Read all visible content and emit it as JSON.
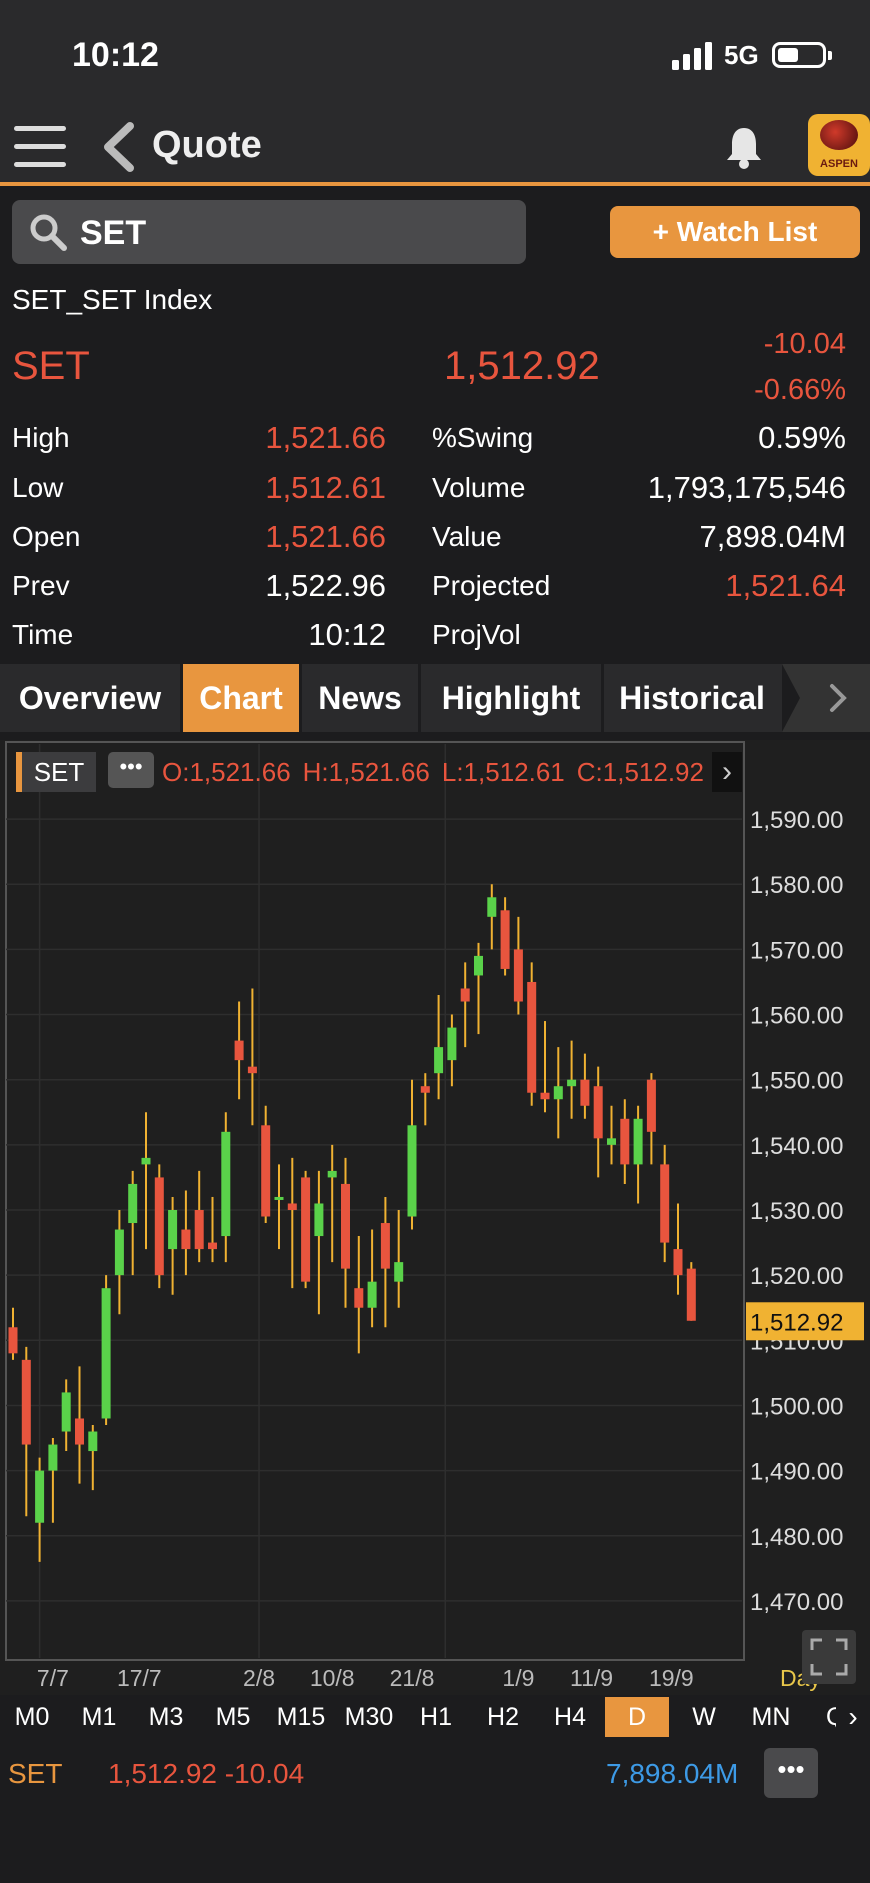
{
  "status": {
    "time": "10:12",
    "network": "5G"
  },
  "header": {
    "title": "Quote"
  },
  "search": {
    "value": "SET",
    "watchlist_label": "+ Watch List"
  },
  "quote": {
    "full_name": "SET_SET Index",
    "symbol": "SET",
    "last": "1,512.92",
    "change": "-10.04",
    "pct_change": "-0.66%",
    "stats_left": [
      {
        "label": "High",
        "value": "1,521.66",
        "color": "#e8553e"
      },
      {
        "label": "Low",
        "value": "1,512.61",
        "color": "#e8553e"
      },
      {
        "label": "Open",
        "value": "1,521.66",
        "color": "#e8553e"
      },
      {
        "label": "Prev",
        "value": "1,522.96",
        "color": "#ffffff"
      },
      {
        "label": "Time",
        "value": "10:12",
        "color": "#ffffff"
      }
    ],
    "stats_right": [
      {
        "label": "%Swing",
        "value": "0.59%",
        "color": "#ffffff"
      },
      {
        "label": "Volume",
        "value": "1,793,175,546",
        "color": "#ffffff"
      },
      {
        "label": "Value",
        "value": "7,898.04M",
        "color": "#ffffff"
      },
      {
        "label": "Projected",
        "value": "1,521.64",
        "color": "#e8553e"
      },
      {
        "label": "ProjVol",
        "value": "",
        "color": "#ffffff"
      }
    ]
  },
  "tabs": [
    {
      "label": "Overview",
      "active": false
    },
    {
      "label": "Chart",
      "active": true
    },
    {
      "label": "News",
      "active": false
    },
    {
      "label": "Highlight",
      "active": false
    },
    {
      "label": "Historical",
      "active": false
    }
  ],
  "chart_header": {
    "symbol": "SET",
    "more": "•••",
    "ohlc": [
      "O:1,521.66",
      "H:1,521.66",
      "L:1,512.61",
      "C:1,512.92"
    ]
  },
  "chart_data": {
    "type": "candlestick",
    "ylim": [
      1464,
      1596
    ],
    "y_ticks": [
      1590,
      1580,
      1570,
      1560,
      1550,
      1540,
      1530,
      1520,
      1510,
      1500,
      1490,
      1480,
      1470
    ],
    "y_tick_labels": [
      "1,590.00",
      "1,580.00",
      "1,570.00",
      "1,560.00",
      "1,550.00",
      "1,540.00",
      "1,530.00",
      "1,520.00",
      "1,510.00",
      "1,500.00",
      "1,490.00",
      "1,480.00",
      "1,470.00"
    ],
    "last_price_label": "1,512.92",
    "last_price": 1512.92,
    "x_labels": [
      {
        "label": "7/7",
        "index": 3
      },
      {
        "label": "17/7",
        "index": 9.5
      },
      {
        "label": "2/8",
        "index": 18.5
      },
      {
        "label": "10/8",
        "index": 24
      },
      {
        "label": "21/8",
        "index": 30
      },
      {
        "label": "1/9",
        "index": 38
      },
      {
        "label": "11/9",
        "index": 43.5
      },
      {
        "label": "19/9",
        "index": 49.5
      }
    ],
    "period_label": "Day",
    "candles": [
      [
        1512,
        1515,
        1507,
        1508
      ],
      [
        1507,
        1509,
        1483,
        1494
      ],
      [
        1482,
        1492,
        1476,
        1490
      ],
      [
        1490,
        1495,
        1482,
        1494
      ],
      [
        1496,
        1504,
        1493,
        1502
      ],
      [
        1498,
        1506,
        1488,
        1494
      ],
      [
        1493,
        1497,
        1487,
        1496
      ],
      [
        1498,
        1520,
        1497,
        1518
      ],
      [
        1520,
        1530,
        1514,
        1527
      ],
      [
        1528,
        1536,
        1520,
        1534
      ],
      [
        1537,
        1545,
        1524,
        1538
      ],
      [
        1535,
        1537,
        1518,
        1520
      ],
      [
        1524,
        1532,
        1517,
        1530
      ],
      [
        1527,
        1533,
        1520,
        1524
      ],
      [
        1530,
        1536,
        1522,
        1524
      ],
      [
        1525,
        1532,
        1522,
        1524
      ],
      [
        1526,
        1545,
        1522,
        1542
      ],
      [
        1556,
        1562,
        1547,
        1553
      ],
      [
        1552,
        1564,
        1543,
        1551
      ],
      [
        1543,
        1546,
        1528,
        1529
      ],
      [
        1532,
        1537,
        1524,
        1532
      ],
      [
        1531,
        1538,
        1518,
        1530
      ],
      [
        1535,
        1536,
        1518,
        1519
      ],
      [
        1526,
        1536,
        1514,
        1531
      ],
      [
        1535,
        1540,
        1522,
        1536
      ],
      [
        1534,
        1538,
        1515,
        1521
      ],
      [
        1518,
        1526,
        1508,
        1515
      ],
      [
        1515,
        1527,
        1512,
        1519
      ],
      [
        1528,
        1532,
        1512,
        1521
      ],
      [
        1519,
        1530,
        1515,
        1522
      ],
      [
        1529,
        1550,
        1527,
        1543
      ],
      [
        1549,
        1551,
        1543,
        1548
      ],
      [
        1551,
        1563,
        1547,
        1555
      ],
      [
        1553,
        1560,
        1549,
        1558
      ],
      [
        1564,
        1568,
        1555,
        1562
      ],
      [
        1566,
        1571,
        1557,
        1569
      ],
      [
        1575,
        1580,
        1570,
        1578
      ],
      [
        1576,
        1578,
        1566,
        1567
      ],
      [
        1570,
        1575,
        1560,
        1562
      ],
      [
        1565,
        1568,
        1546,
        1548
      ],
      [
        1548,
        1559,
        1545,
        1547
      ],
      [
        1547,
        1555,
        1541,
        1549
      ],
      [
        1549,
        1556,
        1544,
        1550
      ],
      [
        1550,
        1554,
        1544,
        1546
      ],
      [
        1549,
        1552,
        1535,
        1541
      ],
      [
        1540,
        1546,
        1537,
        1541
      ],
      [
        1544,
        1547,
        1534,
        1537
      ],
      [
        1537,
        1546,
        1531,
        1544
      ],
      [
        1550,
        1551,
        1537,
        1542
      ],
      [
        1537,
        1540,
        1522,
        1525
      ],
      [
        1524,
        1531,
        1517,
        1520
      ],
      [
        1521,
        1522,
        1513,
        1513
      ]
    ]
  },
  "timeframes": [
    {
      "label": "M0",
      "active": false
    },
    {
      "label": "M1",
      "active": false
    },
    {
      "label": "M3",
      "active": false
    },
    {
      "label": "M5",
      "active": false
    },
    {
      "label": "M15",
      "active": false
    },
    {
      "label": "M30",
      "active": false
    },
    {
      "label": "H1",
      "active": false
    },
    {
      "label": "H2",
      "active": false
    },
    {
      "label": "H4",
      "active": false
    },
    {
      "label": "D",
      "active": true
    },
    {
      "label": "W",
      "active": false
    },
    {
      "label": "MN",
      "active": false
    },
    {
      "label": "Q",
      "active": false
    }
  ],
  "bottom": {
    "symbol": "SET",
    "price_change": "1,512.92 -10.04",
    "value": "7,898.04M",
    "more": "•••"
  },
  "colors": {
    "accent": "#e8963f",
    "down": "#e8553e",
    "up": "#5ad24a",
    "wick": "#f0b232",
    "value_blue": "#3d9ae6"
  }
}
